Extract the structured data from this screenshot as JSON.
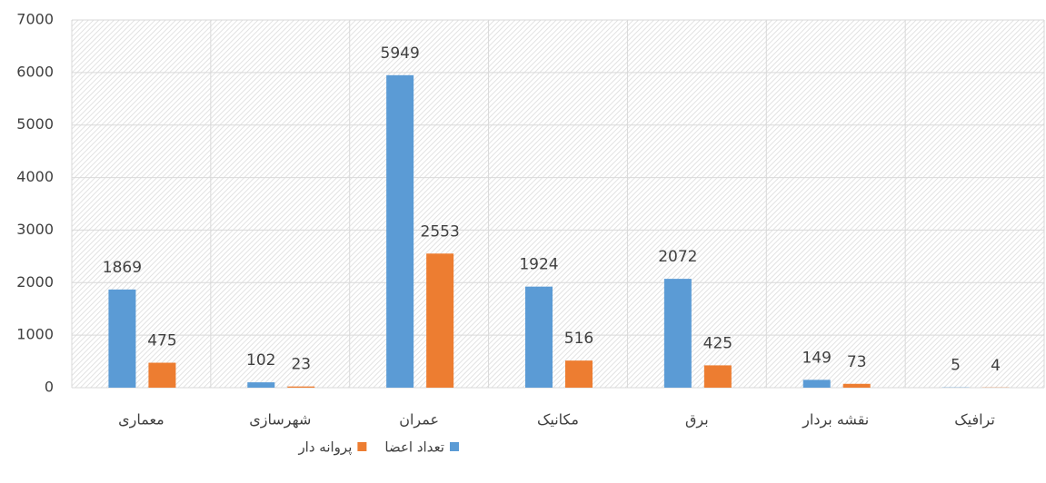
{
  "chart_data": {
    "type": "bar",
    "categories": [
      "معماری",
      "شهرسازی",
      "عمران",
      "مکانیک",
      "برق",
      "نقشه بردار",
      "ترافیک"
    ],
    "series": [
      {
        "name": "تعداد اعضا",
        "color": "#5b9bd5",
        "values": [
          1869,
          102,
          5949,
          1924,
          2072,
          149,
          5
        ]
      },
      {
        "name": "پروانه دار",
        "color": "#ed7d31",
        "values": [
          475,
          23,
          2553,
          516,
          425,
          73,
          4
        ]
      }
    ],
    "ylim": [
      0,
      7000
    ],
    "yticks": [
      0,
      1000,
      2000,
      3000,
      4000,
      5000,
      6000,
      7000
    ],
    "grid": true,
    "legend": "bottom"
  }
}
